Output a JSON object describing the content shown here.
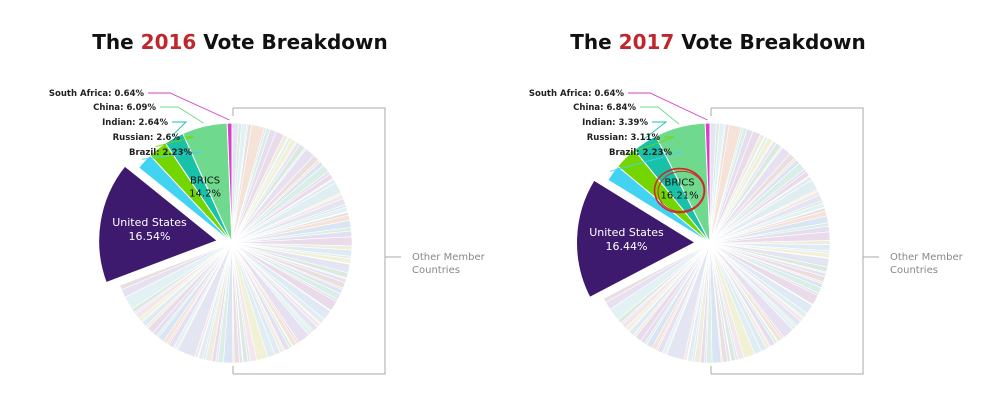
{
  "chart_data": [
    {
      "type": "pie",
      "title": {
        "prefix": "The ",
        "year": "2016",
        "suffix": " Vote Breakdown"
      },
      "slices": [
        {
          "name": "United States",
          "value": 16.54,
          "color": "#3d1a6e"
        },
        {
          "name": "Brazil",
          "value": 2.23,
          "color": "#42d2f2"
        },
        {
          "name": "Russian",
          "value": 2.6,
          "color": "#73d600"
        },
        {
          "name": "Indian",
          "value": 2.64,
          "color": "#17c2a8"
        },
        {
          "name": "China",
          "value": 6.09,
          "color": "#6fd98d"
        },
        {
          "name": "South Africa",
          "value": 0.64,
          "color": "#d63fc9"
        }
      ],
      "group": {
        "name": "BRICS",
        "value": "14.2%"
      },
      "labels": {
        "united_states": "United States",
        "united_states_value": "16.54%",
        "brazil": "Brazil: 2.23%",
        "russian": "Russian: 2.6%",
        "indian": "Indian: 2.64%",
        "china": "China: 6.09%",
        "south_africa": "South Africa: 0.64%"
      },
      "other_label": [
        "Other Member",
        "Countries"
      ]
    },
    {
      "type": "pie",
      "title": {
        "prefix": "The ",
        "year": "2017",
        "suffix": " Vote Breakdown"
      },
      "slices": [
        {
          "name": "United States",
          "value": 16.44,
          "color": "#3d1a6e"
        },
        {
          "name": "Brazil",
          "value": 2.23,
          "color": "#42d2f2"
        },
        {
          "name": "Russian",
          "value": 3.11,
          "color": "#73d600"
        },
        {
          "name": "Indian",
          "value": 3.39,
          "color": "#17c2a8"
        },
        {
          "name": "China",
          "value": 6.84,
          "color": "#6fd98d"
        },
        {
          "name": "South Africa",
          "value": 0.64,
          "color": "#d63fc9"
        }
      ],
      "group": {
        "name": "BRICS",
        "value": "16.21%",
        "circled": true
      },
      "labels": {
        "united_states": "United States",
        "united_states_value": "16.44%",
        "brazil": "Brazil: 2.23%",
        "russian": "Russian: 3.11%",
        "indian": "Indian: 3.39%",
        "china": "China: 6.84%",
        "south_africa": "South Africa: 0.64%"
      },
      "other_label": [
        "Other Member",
        "Countries"
      ]
    }
  ],
  "colors": {
    "title_year": "#c0272d",
    "leader_line": "#aaaaaa",
    "other_palette": [
      "#e3e6f2",
      "#f1f1d6",
      "#dfeaf5",
      "#e9dbe9",
      "#d9efe6",
      "#f5e3d7",
      "#e6e0f1",
      "#dbe9df",
      "#f3e6ec",
      "#e0eef2",
      "#efeede",
      "#e5def0",
      "#d9e4f4",
      "#eadfe0",
      "#e2f2f4"
    ]
  }
}
